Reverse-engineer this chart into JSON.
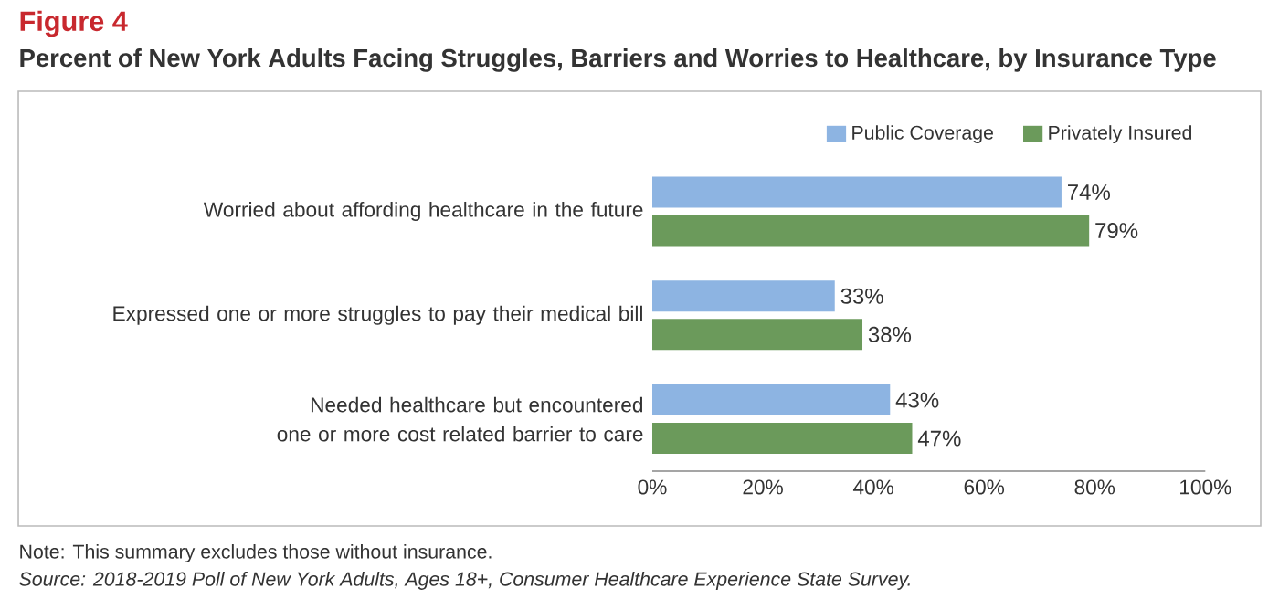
{
  "chart_data": {
    "type": "bar",
    "orientation": "horizontal",
    "title": "Figure 4",
    "subtitle": "Percent of New York Adults Facing Struggles, Barriers and Worries to Healthcare, by Insurance Type",
    "categories": [
      "Worried about affording healthcare in the future",
      "Expressed one or more struggles to pay their medical bill",
      "Needed healthcare but encountered one or more cost related barrier to care"
    ],
    "series": [
      {
        "name": "Public Coverage",
        "color": "#8db4e2",
        "values": [
          74,
          33,
          43
        ],
        "value_labels": [
          "74%",
          "33%",
          "43%"
        ]
      },
      {
        "name": "Privately Insured",
        "color": "#6b9a5b",
        "values": [
          79,
          38,
          47
        ],
        "value_labels": [
          "79%",
          "38%",
          "47%"
        ]
      }
    ],
    "xlim": [
      0,
      100
    ],
    "xticks": [
      {
        "value": 0,
        "label": "0%"
      },
      {
        "value": 20,
        "label": "20%"
      },
      {
        "value": 40,
        "label": "40%"
      },
      {
        "value": 60,
        "label": "60%"
      },
      {
        "value": 80,
        "label": "80%"
      },
      {
        "value": 100,
        "label": "100%"
      }
    ],
    "grid": false,
    "legend": "top right",
    "annotations": [
      "Note: This summary excludes those without insurance.",
      "Source: 2018-2019 Poll of New York Adults, Ages 18+, Consumer Healthcare Experience State Survey."
    ]
  }
}
